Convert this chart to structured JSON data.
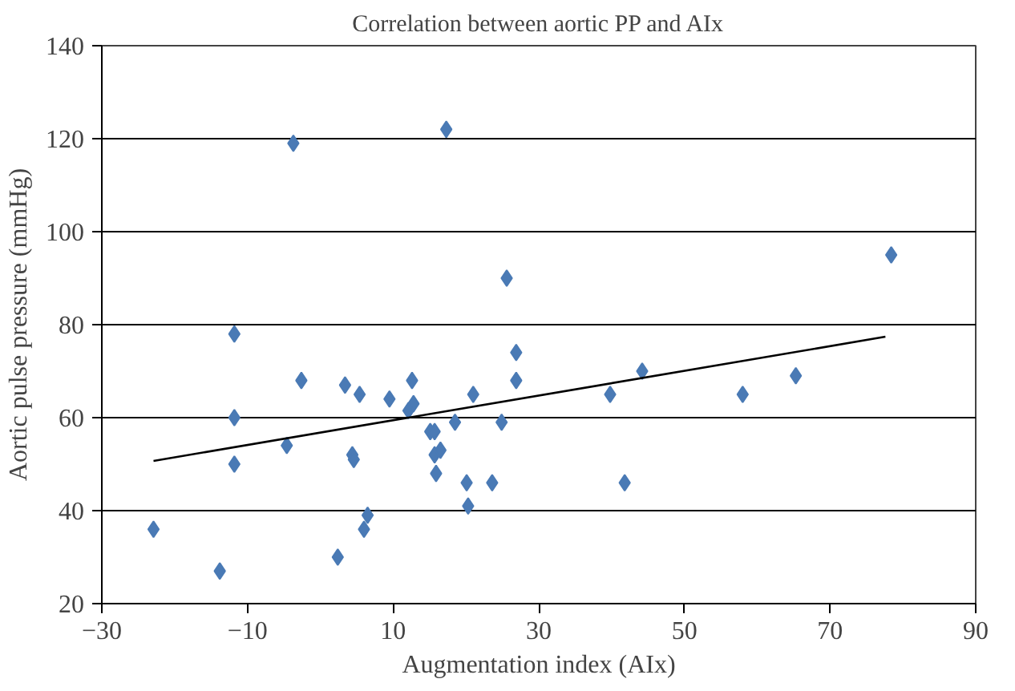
{
  "chart_data": {
    "type": "scatter",
    "title": "Correlation between aortic PP and AIx",
    "xlabel": "Augmentation index (AIx)",
    "ylabel": "Aortic pulse pressure (mmHg)",
    "xlim": [
      -30,
      90
    ],
    "xticks": [
      {
        "value": -30,
        "label": "−30"
      },
      {
        "value": -10,
        "label": "−10"
      },
      10,
      30,
      50,
      70,
      90
    ],
    "ylim": [
      20,
      140
    ],
    "yticks": [
      20,
      40,
      60,
      80,
      100,
      120,
      140
    ],
    "grid": "y",
    "marker": "diamond",
    "series": [
      {
        "color": "#4a7ab5",
        "x": [
          -3.7,
          17.3,
          25.6,
          -11.8,
          26.9,
          26.9,
          -2.6,
          3.4,
          5.4,
          9.5,
          12.6,
          12.8,
          12.1,
          21.0,
          -11.8,
          18.5,
          24.9,
          15.1,
          15.7,
          -4.6,
          4.4,
          4.6,
          15.7,
          16.5,
          -11.8,
          15.9,
          20.1,
          23.6,
          20.3,
          6.5,
          6.0,
          -22.9,
          2.4,
          -13.8,
          78.4,
          44.2,
          65.3,
          39.8,
          58.0,
          41.8
        ],
        "values": [
          119,
          122,
          90,
          78,
          74,
          68,
          68,
          67,
          65,
          64,
          68,
          63,
          61.5,
          65,
          60,
          59,
          59,
          57,
          57,
          54,
          52,
          51,
          52,
          53,
          50,
          48,
          46,
          46,
          41,
          39,
          36,
          36,
          30,
          27,
          95,
          70,
          69,
          65,
          65,
          46
        ]
      },
      {
        "type": "line",
        "color": "#000000",
        "marker": "none",
        "x": [
          -22.9,
          77.6
        ],
        "values": [
          50.7,
          77.4
        ]
      }
    ]
  }
}
